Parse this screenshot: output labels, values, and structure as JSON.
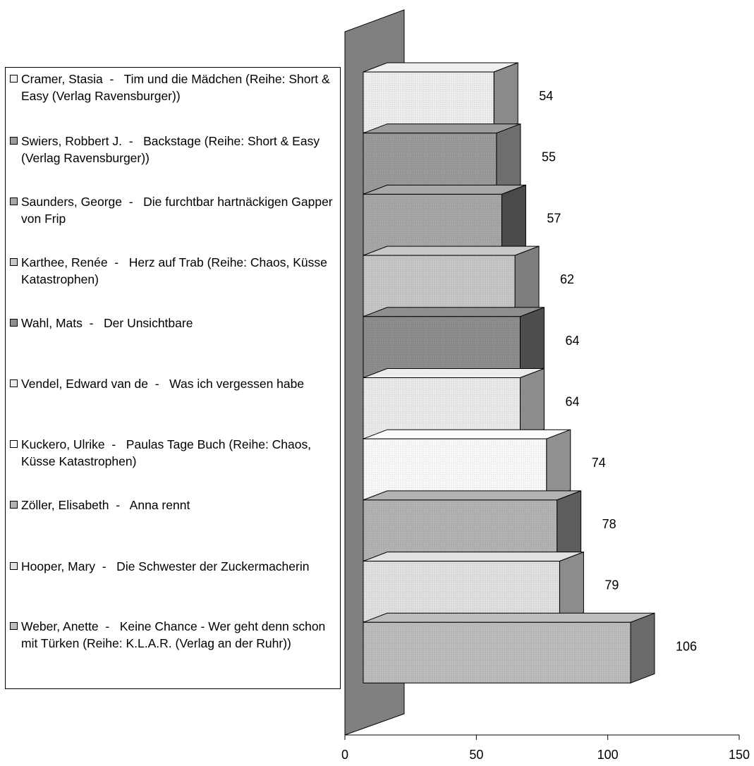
{
  "chart_data": {
    "type": "bar",
    "orientation": "horizontal",
    "three_d": true,
    "title": "",
    "xlabel": "",
    "ylabel": "",
    "xlim": [
      0,
      150
    ],
    "x_ticks": [
      "0",
      "50",
      "100",
      "150"
    ],
    "grid": false,
    "legend_position": "left",
    "categories": [
      "Cramer, Stasia  -   Tim und die Mädchen (Reihe: Short & Easy (Verlag Ravensburger))",
      "Swiers, Robbert J.  -   Backstage (Reihe: Short & Easy (Verlag Ravensburger))",
      "Saunders, George  -   Die furchtbar hartnäckigen Gapper von Frip",
      "Karthee, Renée  -   Herz auf Trab (Reihe: Chaos, Küsse Katastrophen)",
      "Wahl, Mats  -   Der Unsichtbare",
      "Vendel, Edward van de  -   Was ich vergessen habe",
      "Kuckero, Ulrike  -   Paulas Tage Buch (Reihe: Chaos, Küsse Katastrophen)",
      "Zöller, Elisabeth  -   Anna rennt",
      "Hooper, Mary  -   Die Schwester der Zuckermacherin",
      "Weber, Anette  -   Keine Chance - Wer geht denn schon mit Türken (Reihe: K.L.A.R. (Verlag an der Ruhr))"
    ],
    "values": [
      54,
      55,
      57,
      62,
      64,
      64,
      74,
      78,
      79,
      106
    ],
    "value_labels": [
      "54",
      "55",
      "57",
      "62",
      "64",
      "64",
      "74",
      "78",
      "79",
      "106"
    ],
    "colors": [
      "#efefef",
      "#9c9c9c",
      "#a8a8a8",
      "#c8c8c8",
      "#8f8f8f",
      "#ececec",
      "#fbfbfb",
      "#b4b4b4",
      "#e2e2e2",
      "#bebebe"
    ],
    "side_colors": [
      "#8a8a8a",
      "#6e6e6e",
      "#4a4a4a",
      "#7e7e7e",
      "#4e4e4e",
      "#8c8c8c",
      "#909090",
      "#5e5e5e",
      "#8c8c8c",
      "#6a6a6a"
    ],
    "wall_color": "#808080"
  }
}
